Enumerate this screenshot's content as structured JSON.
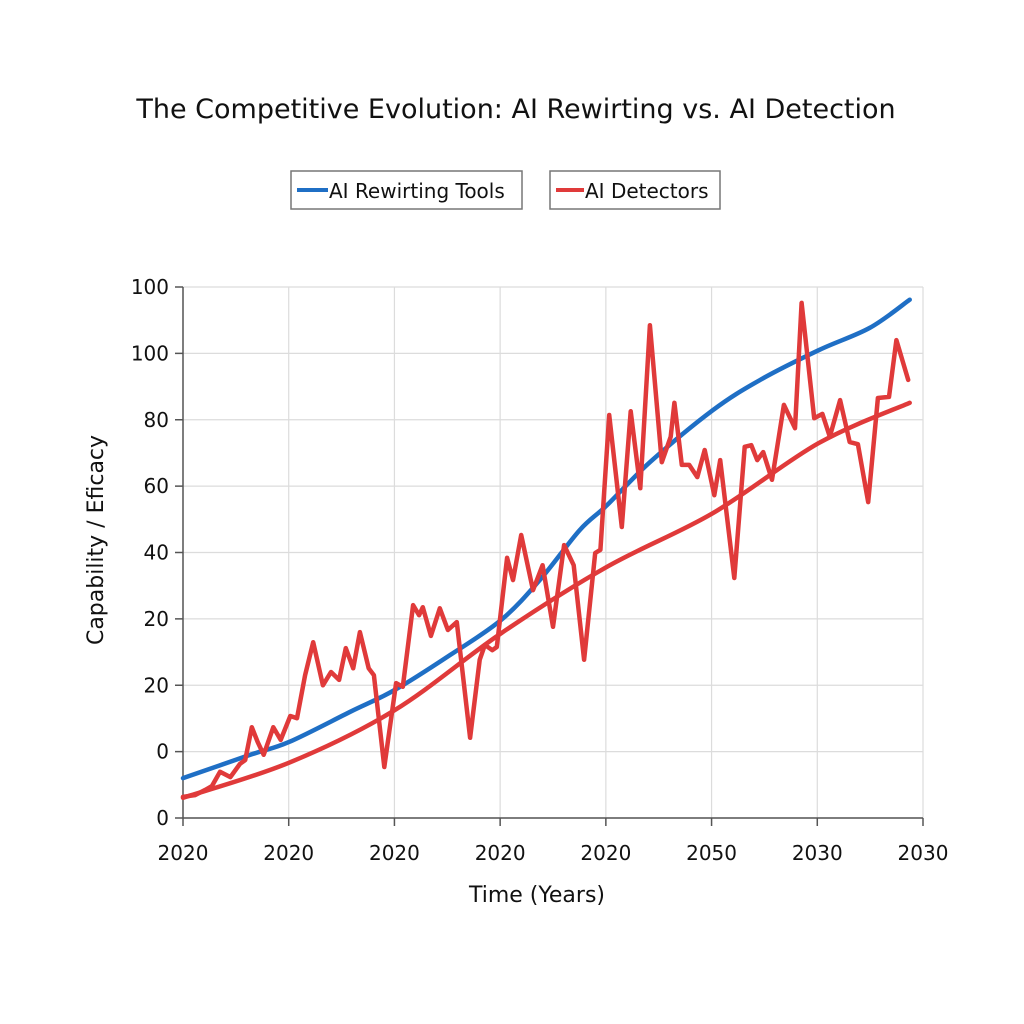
{
  "chart_data": {
    "type": "line",
    "title": "The Competitive Evolution: AI Rewirting vs. AI Detection",
    "xlabel": "Time (Years)",
    "ylabel": "Capability / Eficacy",
    "xlim": [
      2020,
      2030
    ],
    "ylim": [
      0,
      100
    ],
    "x_tick_labels": [
      "2020",
      "2020",
      "2020",
      "2020",
      "2020",
      "2050",
      "2030",
      "2030"
    ],
    "y_tick_labels": [
      "0",
      "0",
      "20",
      "20",
      "40",
      "60",
      "80",
      "100",
      "100"
    ],
    "grid": true,
    "legend_placement": "top-center",
    "series": [
      {
        "name": "AI Rewirting Tools",
        "color": "#1f6fc5",
        "x": [
          2020,
          2020.91,
          2021.43,
          2022.26,
          2022.86,
          2023.61,
          2024.3,
          2024.82,
          2025.36,
          2025.73,
          2026.31,
          2027.16,
          2027.8,
          2028.59,
          2029.28,
          2029.82
        ],
        "y": [
          7.5,
          11.9,
          14.3,
          20.0,
          24.1,
          30.7,
          37.3,
          44.8,
          54.2,
          58.9,
          67.0,
          76.8,
          82.5,
          88.1,
          92.3,
          97.6
        ]
      },
      {
        "name": "AI Detectors",
        "color": "#e03a3a",
        "x": [
          2020,
          2020.16,
          2020.3,
          2020.39,
          2020.5,
          2020.64,
          2020.77,
          2020.84,
          2020.93,
          2021.01,
          2021.09,
          2021.22,
          2021.32,
          2021.45,
          2021.54,
          2021.65,
          2021.76,
          2021.89,
          2022.0,
          2022.11,
          2022.2,
          2022.3,
          2022.39,
          2022.51,
          2022.58,
          2022.72,
          2022.88,
          2022.97,
          2023.11,
          2023.19,
          2023.24,
          2023.35,
          2023.47,
          2023.58,
          2023.7,
          2023.88,
          2024.01,
          2024.08,
          2024.18,
          2024.24,
          2024.38,
          2024.46,
          2024.57,
          2024.73,
          2024.86,
          2025.0,
          2025.15,
          2025.28,
          2025.42,
          2025.57,
          2025.64,
          2025.76,
          2025.93,
          2026.05,
          2026.18,
          2026.31,
          2026.47,
          2026.59,
          2026.64,
          2026.74,
          2026.84,
          2026.95,
          2027.05,
          2027.18,
          2027.26,
          2027.45,
          2027.59,
          2027.68,
          2027.76,
          2027.84,
          2027.96,
          2028.12,
          2028.27,
          2028.36,
          2028.53,
          2028.64,
          2028.74,
          2028.88,
          2029.01,
          2029.12,
          2029.26,
          2029.39,
          2029.54,
          2029.64,
          2029.8
        ],
        "y": [
          4.0,
          4.3,
          5.3,
          6.0,
          8.7,
          7.7,
          10.2,
          10.9,
          17.1,
          14.3,
          11.9,
          17.1,
          14.7,
          19.2,
          18.8,
          26.9,
          33.1,
          25.0,
          27.5,
          26.0,
          32.0,
          28.2,
          35.0,
          28.2,
          26.9,
          9.6,
          25.4,
          24.7,
          40.1,
          38.2,
          39.7,
          34.3,
          39.5,
          35.4,
          36.9,
          15.1,
          29.8,
          32.6,
          31.6,
          32.2,
          49.0,
          44.8,
          53.3,
          42.9,
          47.6,
          36.0,
          51.4,
          47.6,
          29.8,
          49.9,
          50.5,
          75.9,
          54.8,
          76.6,
          62.1,
          92.8,
          67.0,
          71.8,
          78.2,
          66.5,
          66.5,
          64.2,
          69.3,
          60.8,
          67.4,
          45.2,
          69.9,
          70.2,
          67.4,
          68.9,
          63.7,
          77.8,
          73.4,
          97.0,
          75.3,
          76.1,
          71.8,
          78.7,
          70.8,
          70.4,
          59.5,
          79.1,
          79.3,
          90.0,
          82.5
        ]
      },
      {
        "name": "",
        "color": "#e03a3a",
        "trend_of": "AI Detectors",
        "x": [
          2020,
          2021.43,
          2022.86,
          2024.3,
          2025.73,
          2027.16,
          2028.59,
          2029.82
        ],
        "y": [
          3.8,
          10.4,
          20.3,
          34.8,
          47.3,
          57.4,
          70.6,
          78.2
        ]
      }
    ]
  }
}
